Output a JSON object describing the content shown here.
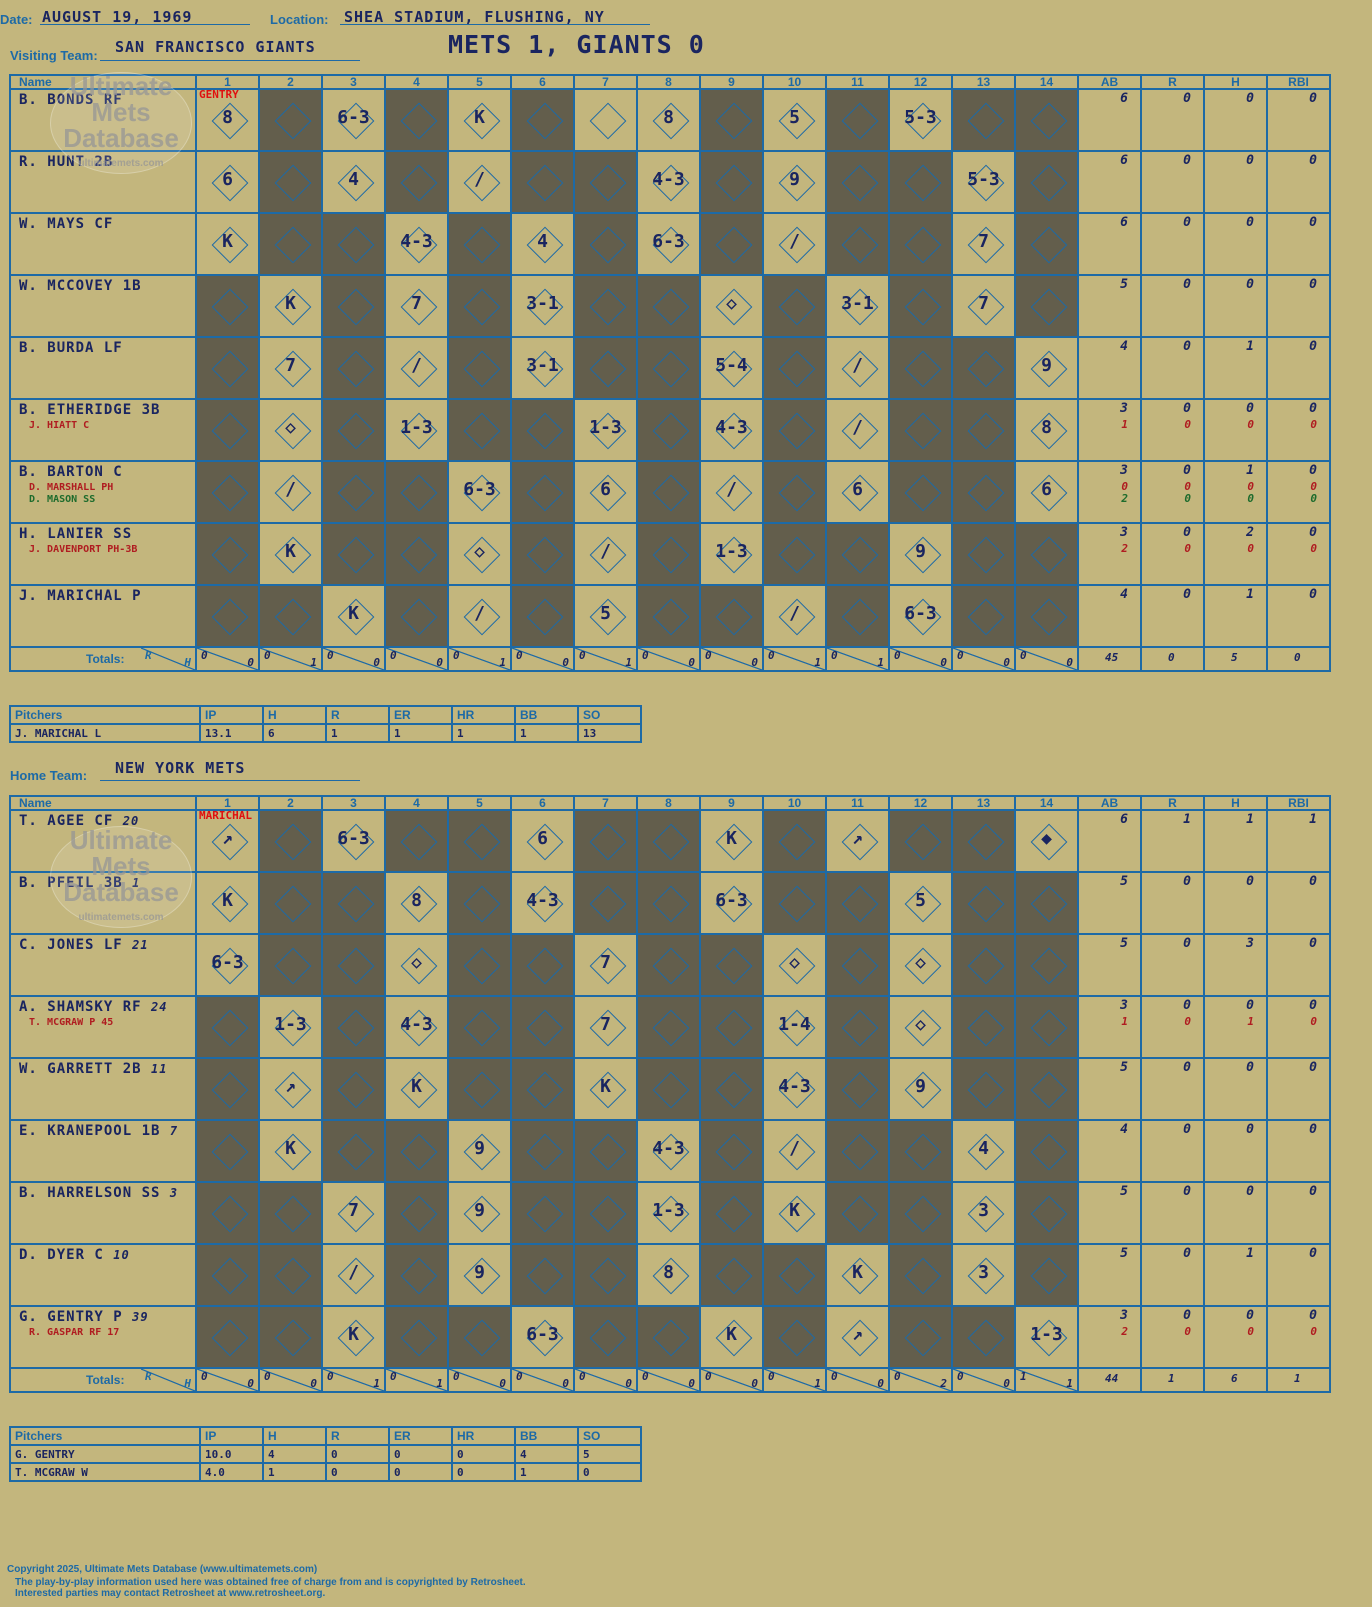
{
  "header": {
    "date_label": "Date:",
    "date": "AUGUST 19, 1969",
    "location_label": "Location:",
    "location": "SHEA STADIUM, FLUSHING, NY",
    "visiting_label": "Visiting Team:",
    "visiting_team": "SAN FRANCISCO GIANTS",
    "home_label": "Home Team:",
    "home_team": "NEW YORK METS",
    "game_title": "METS 1, GIANTS 0"
  },
  "columns": {
    "name": "Name",
    "innings": [
      "1",
      "2",
      "3",
      "4",
      "5",
      "6",
      "7",
      "8",
      "9",
      "10",
      "11",
      "12",
      "13",
      "14"
    ],
    "stats": [
      "AB",
      "R",
      "H",
      "RBI"
    ],
    "totals": "Totals:",
    "r": "R",
    "h": "H"
  },
  "visitors": {
    "pitcher_label_top": "GENTRY",
    "rows": [
      {
        "name": "B. BONDS RF",
        "sub": "",
        "stats": [
          "6",
          "0",
          "0",
          "0"
        ]
      },
      {
        "name": "R. HUNT 2B",
        "sub": "",
        "stats": [
          "6",
          "0",
          "0",
          "0"
        ]
      },
      {
        "name": "W. MAYS CF",
        "sub": "",
        "stats": [
          "6",
          "0",
          "0",
          "0"
        ]
      },
      {
        "name": "W. MCCOVEY 1B",
        "sub": "",
        "stats": [
          "5",
          "0",
          "0",
          "0"
        ]
      },
      {
        "name": "B. BURDA LF",
        "sub": "",
        "stats": [
          "4",
          "0",
          "1",
          "0"
        ]
      },
      {
        "name": "B. ETHERIDGE 3B",
        "sub": "J. HIATT C",
        "stats": [
          "3",
          "0",
          "0",
          "0"
        ],
        "sub_stats": [
          "1",
          "0",
          "0",
          "0"
        ]
      },
      {
        "name": "B. BARTON C",
        "sub": "D. MARSHALL PH",
        "sub2": "D. MASON SS",
        "stats": [
          "3",
          "0",
          "1",
          "0"
        ],
        "sub_stats": [
          "0",
          "0",
          "0",
          "0"
        ],
        "sub2_stats": [
          "2",
          "0",
          "0",
          "0"
        ]
      },
      {
        "name": "H. LANIER SS",
        "sub": "J. DAVENPORT PH-3B",
        "stats": [
          "3",
          "0",
          "2",
          "0"
        ],
        "sub_stats": [
          "2",
          "0",
          "0",
          "0"
        ]
      },
      {
        "name": "J. MARICHAL P",
        "sub": "",
        "stats": [
          "4",
          "0",
          "1",
          "0"
        ]
      }
    ],
    "totals_rh": [
      [
        "0",
        "0"
      ],
      [
        "0",
        "1"
      ],
      [
        "0",
        "0"
      ],
      [
        "0",
        "0"
      ],
      [
        "0",
        "1"
      ],
      [
        "0",
        "0"
      ],
      [
        "0",
        "1"
      ],
      [
        "0",
        "0"
      ],
      [
        "0",
        "0"
      ],
      [
        "0",
        "1"
      ],
      [
        "0",
        "1"
      ],
      [
        "0",
        "0"
      ],
      [
        "0",
        "0"
      ],
      [
        "0",
        "0"
      ]
    ],
    "totals_stats": [
      "45",
      "0",
      "5",
      "0"
    ]
  },
  "home": {
    "pitcher_label_top": "MARICHAL",
    "rows": [
      {
        "name": "T. AGEE CF",
        "num": "20",
        "sub": "",
        "stats": [
          "6",
          "1",
          "1",
          "1"
        ]
      },
      {
        "name": "B. PFEIL 3B",
        "num": "1",
        "sub": "",
        "stats": [
          "5",
          "0",
          "0",
          "0"
        ]
      },
      {
        "name": "C. JONES LF",
        "num": "21",
        "sub": "",
        "stats": [
          "5",
          "0",
          "3",
          "0"
        ]
      },
      {
        "name": "A. SHAMSKY RF",
        "num": "24",
        "sub": "T. MCGRAW P 45",
        "stats": [
          "3",
          "0",
          "0",
          "0"
        ],
        "sub_stats": [
          "1",
          "0",
          "1",
          "0"
        ]
      },
      {
        "name": "W. GARRETT 2B",
        "num": "11",
        "sub": "",
        "stats": [
          "5",
          "0",
          "0",
          "0"
        ]
      },
      {
        "name": "E. KRANEPOOL 1B",
        "num": "7",
        "sub": "",
        "stats": [
          "4",
          "0",
          "0",
          "0"
        ]
      },
      {
        "name": "B. HARRELSON SS",
        "num": "3",
        "sub": "",
        "stats": [
          "5",
          "0",
          "0",
          "0"
        ]
      },
      {
        "name": "D. DYER C",
        "num": "10",
        "sub": "",
        "stats": [
          "5",
          "0",
          "1",
          "0"
        ]
      },
      {
        "name": "G. GENTRY P",
        "num": "39",
        "sub": "R. GASPAR RF 17",
        "stats": [
          "3",
          "0",
          "0",
          "0"
        ],
        "sub_stats": [
          "2",
          "0",
          "0",
          "0"
        ]
      }
    ],
    "totals_rh": [
      [
        "0",
        "0"
      ],
      [
        "0",
        "0"
      ],
      [
        "0",
        "1"
      ],
      [
        "0",
        "1"
      ],
      [
        "0",
        "0"
      ],
      [
        "0",
        "0"
      ],
      [
        "0",
        "0"
      ],
      [
        "0",
        "0"
      ],
      [
        "0",
        "0"
      ],
      [
        "0",
        "1"
      ],
      [
        "0",
        "0"
      ],
      [
        "0",
        "2"
      ],
      [
        "0",
        "0"
      ],
      [
        "1",
        "1"
      ]
    ],
    "totals_stats": [
      "44",
      "1",
      "6",
      "1"
    ]
  },
  "visitor_pitchers": {
    "headers": [
      "Pitchers",
      "IP",
      "H",
      "R",
      "ER",
      "HR",
      "BB",
      "SO"
    ],
    "rows": [
      [
        "J. MARICHAL L",
        "13.1",
        "6",
        "1",
        "1",
        "1",
        "1",
        "13"
      ]
    ]
  },
  "home_pitchers": {
    "headers": [
      "Pitchers",
      "IP",
      "H",
      "R",
      "ER",
      "HR",
      "BB",
      "SO"
    ],
    "rows": [
      [
        "G. GENTRY",
        "10.0",
        "4",
        "0",
        "0",
        "0",
        "4",
        "5"
      ],
      [
        "T. MCGRAW W",
        "4.0",
        "1",
        "0",
        "0",
        "0",
        "1",
        "0"
      ]
    ]
  },
  "watermark": {
    "line1": "Ultimate",
    "line2": "Mets",
    "line3": "Database",
    "url": "ultimatemets.com"
  },
  "footer": {
    "line1": "Copyright 2025, Ultimate Mets Database (www.ultimatemets.com)",
    "line2": "The play-by-play information used here was obtained free of charge from and is copyrighted by Retrosheet.",
    "line3": "Interested parties may contact Retrosheet at www.retrosheet.org."
  },
  "colors": {
    "paper": "#c3b67d",
    "dark_cell": "#635e4c",
    "grid": "#1d6aa6",
    "ink": "#1a2560",
    "red_ink": "#b01c20"
  }
}
